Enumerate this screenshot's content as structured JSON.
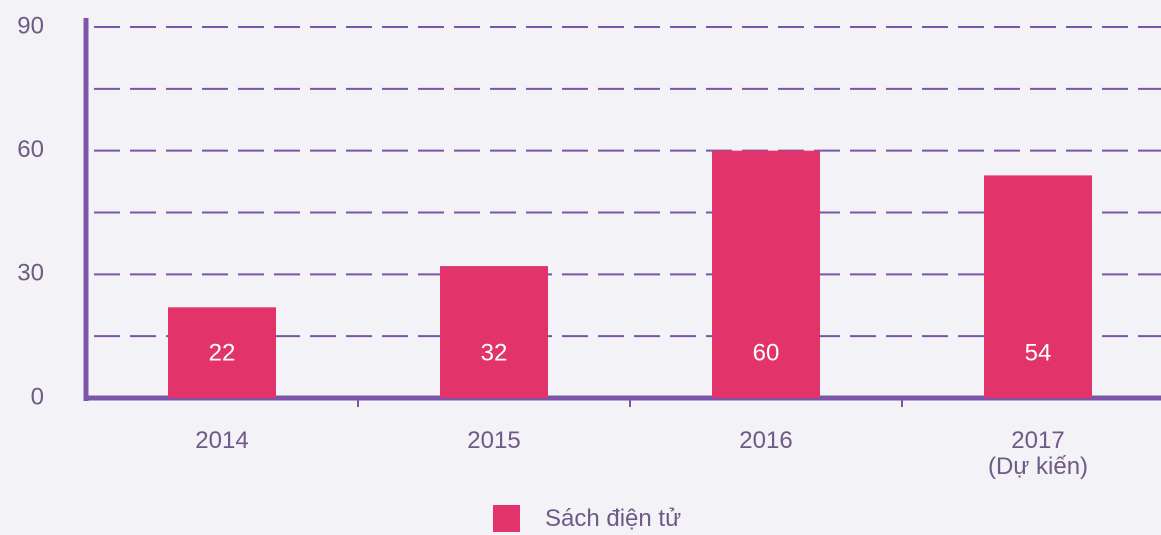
{
  "chart_data": {
    "type": "bar",
    "categories": [
      "2014",
      "2015",
      "2016",
      "2017\n(Dự kiến)"
    ],
    "series": [
      {
        "name": "Sách điện tử",
        "color": "#e2336b",
        "values": [
          22,
          32,
          60,
          54
        ]
      }
    ],
    "ylim": [
      0,
      90
    ],
    "yticks": [
      0,
      30,
      60,
      90
    ],
    "minor_yticks": [
      15,
      45,
      75
    ],
    "grid": true,
    "legend": "bottom"
  }
}
